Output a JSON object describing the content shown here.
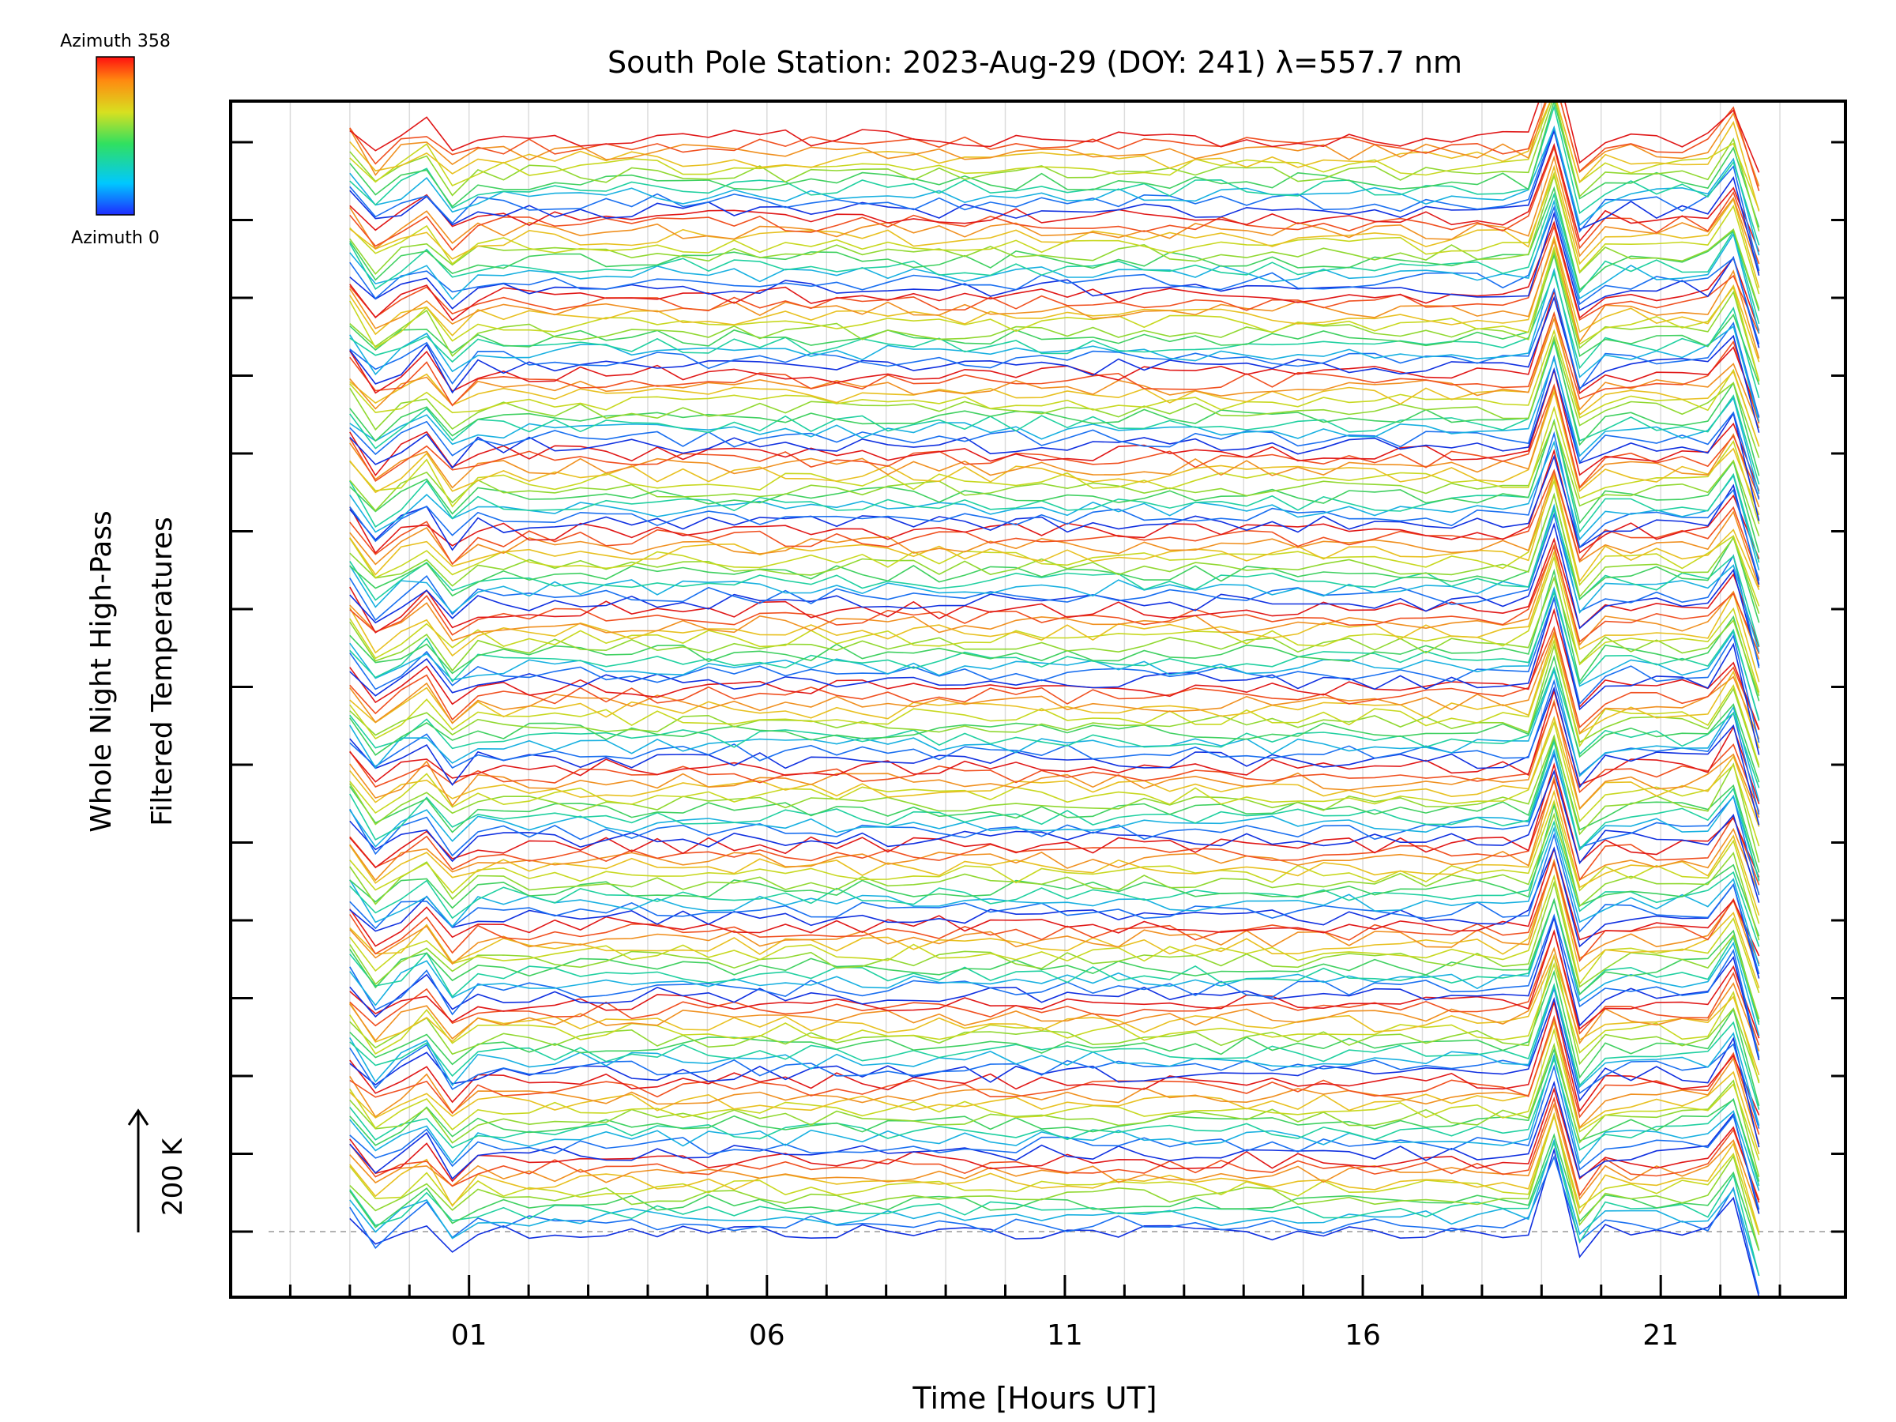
{
  "chart_data": {
    "type": "line",
    "title": "South Pole Station: 2023-Aug-29 (DOY: 241) λ=557.7 nm",
    "xlabel": "Time [Hours UT]",
    "ylabel_line1": "Whole Night High-Pass",
    "ylabel_line2": "Filtered Temperatures",
    "scale_label": "200 K",
    "x_ticks": [
      "01",
      "06",
      "11",
      "16",
      "21"
    ],
    "x_tick_values": [
      1,
      6,
      11,
      16,
      21
    ],
    "xlim": [
      -3,
      24.1
    ],
    "x_data_range": [
      -1.0,
      22.65
    ],
    "samples_per_trace": 56,
    "spike_time_hours": 19.35,
    "offset_dashed_baseline": true,
    "grid": "vertical",
    "stacked_offset_groups": 14,
    "traces_per_group": 11,
    "colorbar": {
      "label_top": "Azimuth 358",
      "label_bottom": "Azimuth 0",
      "min": 0,
      "max": 358,
      "colormap": "rainbow"
    },
    "colors": [
      "#1030e0",
      "#1a70f0",
      "#18b0e0",
      "#20d0a0",
      "#40d060",
      "#90d830",
      "#c8d820",
      "#e8c020",
      "#f09020",
      "#f05020",
      "#e01818"
    ]
  }
}
